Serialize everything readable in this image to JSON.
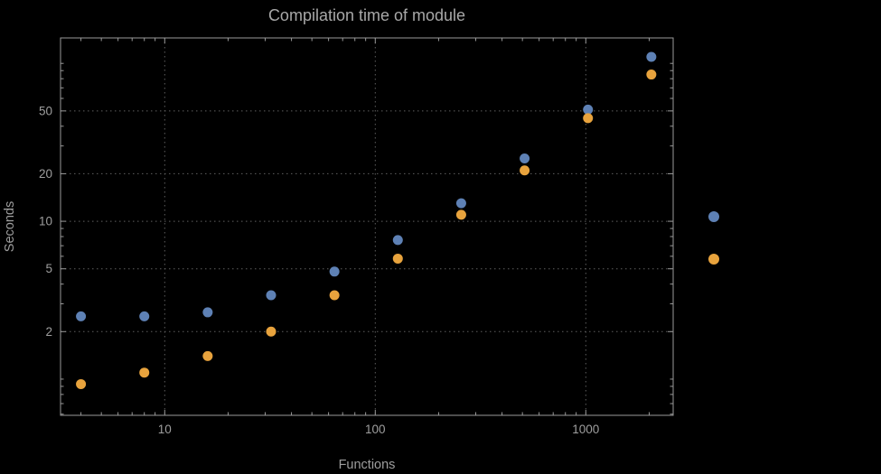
{
  "title": "Compilation time of module",
  "axis": {
    "x_label": "Functions",
    "y_label": "Seconds"
  },
  "colors": {
    "background": "#000000",
    "frame": "#9a9a9a",
    "grid": "#5f5f5f",
    "text": "#9e9e9e",
    "title_text": "#a8a8a8",
    "series_blue": "#5e81b5",
    "series_orange": "#e8a33d"
  },
  "chart_data": {
    "type": "scatter",
    "title": "Compilation time of module",
    "xlabel": "Functions",
    "ylabel": "Seconds",
    "x_scale": "log",
    "y_scale": "log",
    "grid": true,
    "grid_style": "dotted",
    "x_range": [
      3.2,
      2600
    ],
    "y_range": [
      0.59,
      145
    ],
    "x_ticks": [
      10,
      100,
      1000
    ],
    "x_tick_labels": [
      "10",
      "100",
      "1000"
    ],
    "y_ticks": [
      2,
      5,
      10,
      20,
      50
    ],
    "y_tick_labels": [
      "2",
      "5",
      "10",
      "20",
      "50"
    ],
    "series": [
      {
        "name": "series-blue",
        "color": "#5e81b5",
        "x": [
          4,
          8,
          16,
          32,
          64,
          128,
          256,
          512,
          1024,
          2048
        ],
        "y": [
          2.5,
          2.5,
          2.65,
          3.4,
          4.8,
          7.6,
          13,
          25,
          51,
          110
        ]
      },
      {
        "name": "series-orange",
        "color": "#e8a33d",
        "x": [
          4,
          8,
          16,
          32,
          64,
          128,
          256,
          512,
          1024,
          2048
        ],
        "y": [
          0.93,
          1.1,
          1.4,
          2.0,
          3.4,
          5.8,
          11,
          21,
          45,
          85
        ]
      }
    ],
    "legend": [
      {
        "name": "series-blue",
        "color": "#5e81b5"
      },
      {
        "name": "series-orange",
        "color": "#e8a33d"
      }
    ]
  }
}
